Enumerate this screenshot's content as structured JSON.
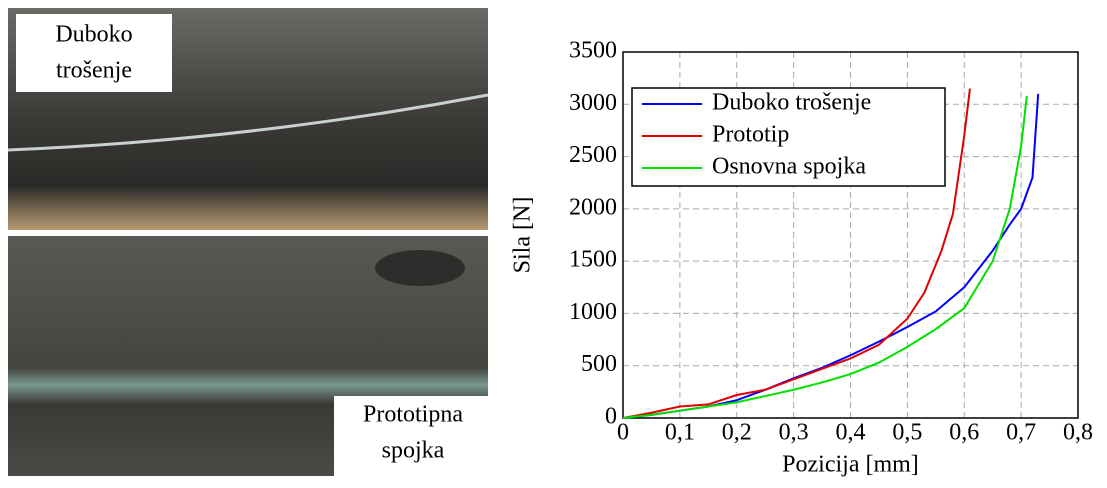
{
  "photos": [
    {
      "label_lines": [
        "Duboko",
        "trošenje"
      ]
    },
    {
      "label_lines": [
        "Prototipna",
        "spojka"
      ]
    }
  ],
  "chart_data": {
    "type": "line",
    "xlabel": "Pozicija [mm]",
    "ylabel": "Sila [N]",
    "xlim": [
      0,
      0.8
    ],
    "ylim": [
      0,
      3500
    ],
    "xticks": [
      0,
      {
        "value": 0.1,
        "label": "0,1"
      },
      {
        "value": 0.2,
        "label": "0,2"
      },
      {
        "value": 0.3,
        "label": "0,3"
      },
      {
        "value": 0.4,
        "label": "0,4"
      },
      {
        "value": 0.5,
        "label": "0,5"
      },
      {
        "value": 0.6,
        "label": "0,6"
      },
      {
        "value": 0.7,
        "label": "0,7"
      },
      {
        "value": 0.8,
        "label": "0,8"
      }
    ],
    "yticks": [
      0,
      500,
      1000,
      1500,
      2000,
      2500,
      3000,
      3500
    ],
    "grid": true,
    "legend": "upper-left",
    "series": [
      {
        "name": "Duboko trošenje",
        "color": "#0000ff",
        "x": [
          0,
          0.05,
          0.1,
          0.15,
          0.2,
          0.25,
          0.3,
          0.35,
          0.4,
          0.45,
          0.5,
          0.55,
          0.6,
          0.65,
          0.68,
          0.7,
          0.72,
          0.73
        ],
        "values": [
          0,
          30,
          70,
          110,
          170,
          270,
          380,
          480,
          600,
          730,
          870,
          1020,
          1250,
          1600,
          1850,
          2000,
          2300,
          3100
        ]
      },
      {
        "name": "Prototip",
        "color": "#e00000",
        "x": [
          0,
          0.05,
          0.1,
          0.15,
          0.2,
          0.25,
          0.3,
          0.35,
          0.4,
          0.45,
          0.5,
          0.53,
          0.56,
          0.58,
          0.6,
          0.61
        ],
        "values": [
          0,
          50,
          110,
          130,
          220,
          270,
          370,
          470,
          570,
          700,
          950,
          1200,
          1600,
          1950,
          2700,
          3150
        ]
      },
      {
        "name": "Osnovna spojka",
        "color": "#00e000",
        "x": [
          0,
          0.05,
          0.1,
          0.15,
          0.2,
          0.25,
          0.3,
          0.35,
          0.4,
          0.45,
          0.5,
          0.55,
          0.6,
          0.65,
          0.68,
          0.7,
          0.71
        ],
        "values": [
          0,
          30,
          70,
          110,
          150,
          210,
          270,
          340,
          420,
          530,
          680,
          850,
          1050,
          1500,
          2000,
          2600,
          3080
        ]
      }
    ]
  }
}
